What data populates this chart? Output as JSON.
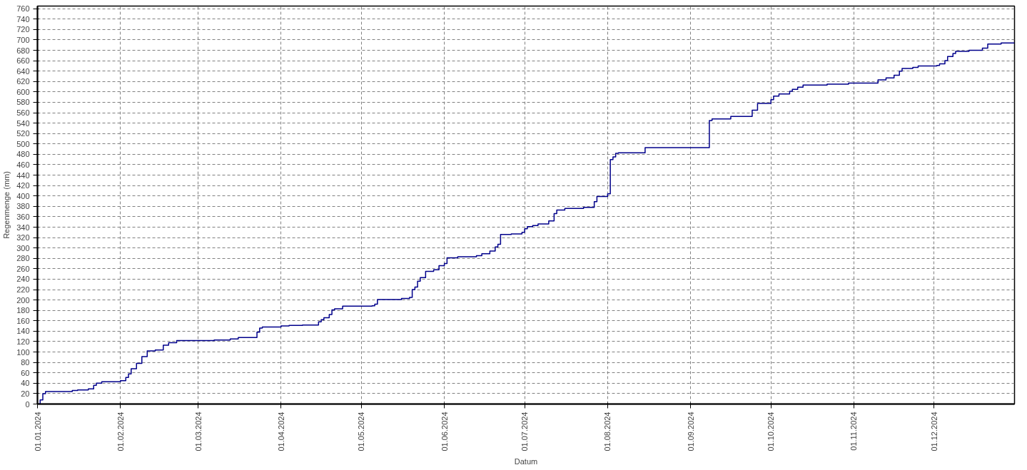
{
  "chart_data": {
    "type": "step",
    "xlabel": "Datum",
    "ylabel": "Regenmenge (mm)",
    "x": [
      "2024-01-01",
      "2024-01-02",
      "2024-01-03",
      "2024-01-04",
      "2024-01-14",
      "2024-01-16",
      "2024-01-20",
      "2024-01-22",
      "2024-01-23",
      "2024-01-25",
      "2024-02-01",
      "2024-02-03",
      "2024-02-04",
      "2024-02-05",
      "2024-02-07",
      "2024-02-09",
      "2024-02-11",
      "2024-02-14",
      "2024-02-17",
      "2024-02-19",
      "2024-02-22",
      "2024-03-07",
      "2024-03-13",
      "2024-03-16",
      "2024-03-23",
      "2024-03-24",
      "2024-03-25",
      "2024-04-01",
      "2024-04-04",
      "2024-04-09",
      "2024-04-15",
      "2024-04-16",
      "2024-04-17",
      "2024-04-19",
      "2024-04-20",
      "2024-04-21",
      "2024-04-24",
      "2024-05-05",
      "2024-05-06",
      "2024-05-07",
      "2024-05-16",
      "2024-05-19",
      "2024-05-20",
      "2024-05-21",
      "2024-05-22",
      "2024-05-23",
      "2024-05-25",
      "2024-05-28",
      "2024-05-30",
      "2024-06-01",
      "2024-06-02",
      "2024-06-06",
      "2024-06-13",
      "2024-06-15",
      "2024-06-18",
      "2024-06-20",
      "2024-06-21",
      "2024-06-22",
      "2024-06-26",
      "2024-06-30",
      "2024-07-01",
      "2024-07-02",
      "2024-07-04",
      "2024-07-06",
      "2024-07-10",
      "2024-07-12",
      "2024-07-13",
      "2024-07-16",
      "2024-07-23",
      "2024-07-27",
      "2024-07-28",
      "2024-08-01",
      "2024-08-02",
      "2024-08-03",
      "2024-08-04",
      "2024-08-05",
      "2024-08-15",
      "2024-09-08",
      "2024-09-09",
      "2024-09-16",
      "2024-09-24",
      "2024-09-26",
      "2024-10-01",
      "2024-10-02",
      "2024-10-04",
      "2024-10-08",
      "2024-10-09",
      "2024-10-11",
      "2024-10-13",
      "2024-10-22",
      "2024-10-30",
      "2024-11-10",
      "2024-11-13",
      "2024-11-16",
      "2024-11-18",
      "2024-11-19",
      "2024-11-23",
      "2024-11-25",
      "2024-12-02",
      "2024-12-03",
      "2024-12-05",
      "2024-12-06",
      "2024-12-08",
      "2024-12-09",
      "2024-12-14",
      "2024-12-19",
      "2024-12-21",
      "2024-12-26",
      "2024-12-31"
    ],
    "series": [
      {
        "color": "#00008b",
        "values": [
          0,
          8,
          20,
          24,
          26,
          27,
          29,
          36,
          40,
          43,
          45,
          51,
          58,
          68,
          78,
          91,
          102,
          104,
          113,
          118,
          122,
          123,
          125,
          128,
          138,
          146,
          148,
          150,
          151,
          152,
          158,
          162,
          166,
          172,
          181,
          183,
          188,
          189,
          192,
          201,
          203,
          205,
          220,
          225,
          236,
          243,
          255,
          258,
          266,
          270,
          281,
          283,
          285,
          289,
          294,
          302,
          307,
          326,
          327,
          330,
          337,
          341,
          343,
          346,
          352,
          366,
          373,
          376,
          378,
          389,
          399,
          404,
          470,
          475,
          482,
          483,
          493,
          545,
          548,
          553,
          565,
          578,
          585,
          592,
          596,
          601,
          605,
          609,
          613,
          615,
          617,
          623,
          627,
          632,
          640,
          645,
          647,
          650,
          651,
          654,
          660,
          668,
          674,
          678,
          680,
          684,
          692,
          694,
          694
        ]
      }
    ],
    "xlim": [
      "2024-01-01",
      "2024-12-31"
    ],
    "xticks": [
      {
        "value": "2024-01-01",
        "label": "01.01.2024"
      },
      {
        "value": "2024-02-01",
        "label": "01.02.2024"
      },
      {
        "value": "2024-03-01",
        "label": "01.03.2024"
      },
      {
        "value": "2024-04-01",
        "label": "01.04.2024"
      },
      {
        "value": "2024-05-01",
        "label": "01.05.2024"
      },
      {
        "value": "2024-06-01",
        "label": "01.06.2024"
      },
      {
        "value": "2024-07-01",
        "label": "01.07.2024"
      },
      {
        "value": "2024-08-01",
        "label": "01.08.2024"
      },
      {
        "value": "2024-09-01",
        "label": "01.09.2024"
      },
      {
        "value": "2024-10-01",
        "label": "01.10.2024"
      },
      {
        "value": "2024-11-01",
        "label": "01.11.2024"
      },
      {
        "value": "2024-12-01",
        "label": "01.12.2024"
      }
    ],
    "ylim": [
      0,
      765
    ],
    "yticks": [
      0,
      20,
      40,
      60,
      80,
      100,
      120,
      140,
      160,
      180,
      200,
      220,
      240,
      260,
      280,
      300,
      320,
      340,
      360,
      380,
      400,
      420,
      440,
      460,
      480,
      500,
      520,
      540,
      560,
      580,
      600,
      620,
      640,
      660,
      680,
      700,
      720,
      740,
      760
    ],
    "grid": true,
    "line_style": "solid",
    "marker": "none"
  }
}
